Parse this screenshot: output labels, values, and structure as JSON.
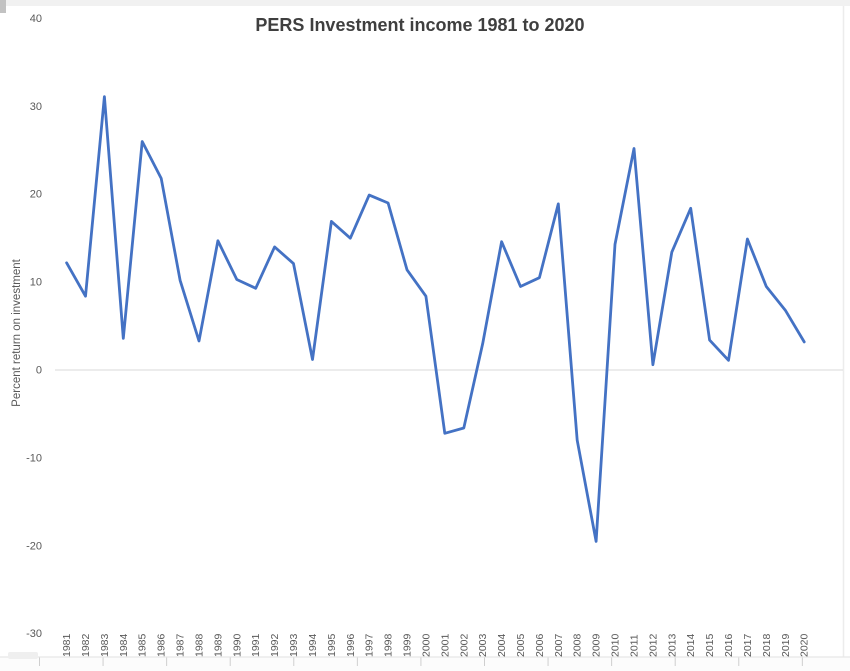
{
  "chart": {
    "accent_line_color": "#4472C4",
    "axis_line_color": "#d9d9d9",
    "tick_label_color": "#595959",
    "title_color": "#3f3f3f"
  },
  "chart_data": {
    "type": "line",
    "title": "PERS Investment income 1981 to 2020",
    "xlabel": "",
    "ylabel": "Percent return on investment",
    "ylim": [
      -30,
      40
    ],
    "yticks": [
      40,
      30,
      20,
      10,
      0,
      -10,
      -20,
      -30
    ],
    "grid": "zero-axis-line-only",
    "legend": "none",
    "line_color": "#4472C4",
    "categories": [
      1981,
      1982,
      1983,
      1984,
      1985,
      1986,
      1987,
      1988,
      1989,
      1990,
      1991,
      1992,
      1993,
      1994,
      1995,
      1996,
      1997,
      1998,
      1999,
      2000,
      2001,
      2002,
      2003,
      2004,
      2005,
      2006,
      2007,
      2008,
      2009,
      2010,
      2011,
      2012,
      2013,
      2014,
      2015,
      2016,
      2017,
      2018,
      2019,
      2020
    ],
    "series": [
      {
        "name": "Percent return on investment",
        "values": [
          12.2,
          8.4,
          31.1,
          3.6,
          26.0,
          21.8,
          10.2,
          3.3,
          14.7,
          10.3,
          9.3,
          14.0,
          12.1,
          1.2,
          16.9,
          15.0,
          19.9,
          19.0,
          11.4,
          8.4,
          -7.2,
          -6.6,
          3.0,
          14.6,
          9.5,
          10.5,
          18.9,
          -8.0,
          -19.5,
          14.3,
          25.2,
          0.6,
          13.4,
          18.4,
          3.4,
          1.1,
          14.9,
          9.5,
          6.8,
          3.2
        ]
      }
    ]
  }
}
